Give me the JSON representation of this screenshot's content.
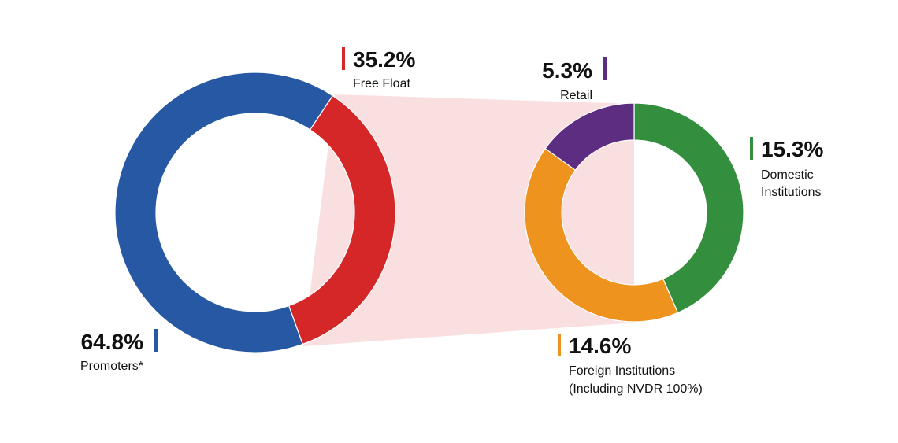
{
  "chart_data": [
    {
      "type": "pie",
      "series": [
        {
          "name": "Promoters*",
          "value": 64.8,
          "value_label": "64.8%",
          "color": "#2758a3"
        },
        {
          "name": "Free Float",
          "value": 35.2,
          "value_label": "35.2%",
          "color": "#d62728"
        }
      ],
      "labels": {
        "promoters": {
          "pct": "64.8%",
          "lines": [
            "Promoters*"
          ]
        },
        "free_float": {
          "pct": "35.2%",
          "lines": [
            "Free Float"
          ]
        }
      }
    },
    {
      "type": "pie",
      "series": [
        {
          "name": "Domestic Institutions",
          "value": 15.3,
          "value_label": "15.3%",
          "color": "#338f3d"
        },
        {
          "name": "Foreign Institutions (Including NVDR 100%)",
          "value": 14.6,
          "value_label": "14.6%",
          "color": "#ef931f"
        },
        {
          "name": "Retail",
          "value": 5.3,
          "value_label": "5.3%",
          "color": "#5c2d80"
        }
      ],
      "labels": {
        "retail": {
          "pct": "5.3%",
          "lines": [
            "Retail"
          ]
        },
        "domestic": {
          "pct": "15.3%",
          "lines": [
            "Domestic",
            "Institutions"
          ]
        },
        "foreign": {
          "pct": "14.6%",
          "lines": [
            "Foreign Institutions",
            "(Including NVDR 100%)"
          ]
        }
      }
    }
  ],
  "connector_color": "#f9dfe0"
}
